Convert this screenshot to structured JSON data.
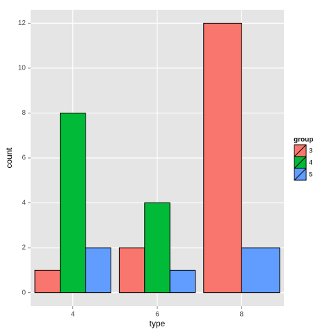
{
  "chart_data": {
    "type": "bar",
    "x_label": "type",
    "y_label": "count",
    "categories": [
      "4",
      "6",
      "8"
    ],
    "series": [
      {
        "name": "3",
        "color": "#F8766D",
        "values": [
          1,
          2,
          12
        ]
      },
      {
        "name": "4",
        "color": "#00BA38",
        "values": [
          8,
          4,
          null
        ]
      },
      {
        "name": "5",
        "color": "#619CFF",
        "values": [
          2,
          1,
          2
        ]
      }
    ],
    "legend_title": "group",
    "legend_position": "right",
    "ylim": [
      -0.6,
      12.6
    ],
    "yticks": [
      0,
      2,
      4,
      6,
      8,
      10,
      12
    ],
    "grid": true
  }
}
